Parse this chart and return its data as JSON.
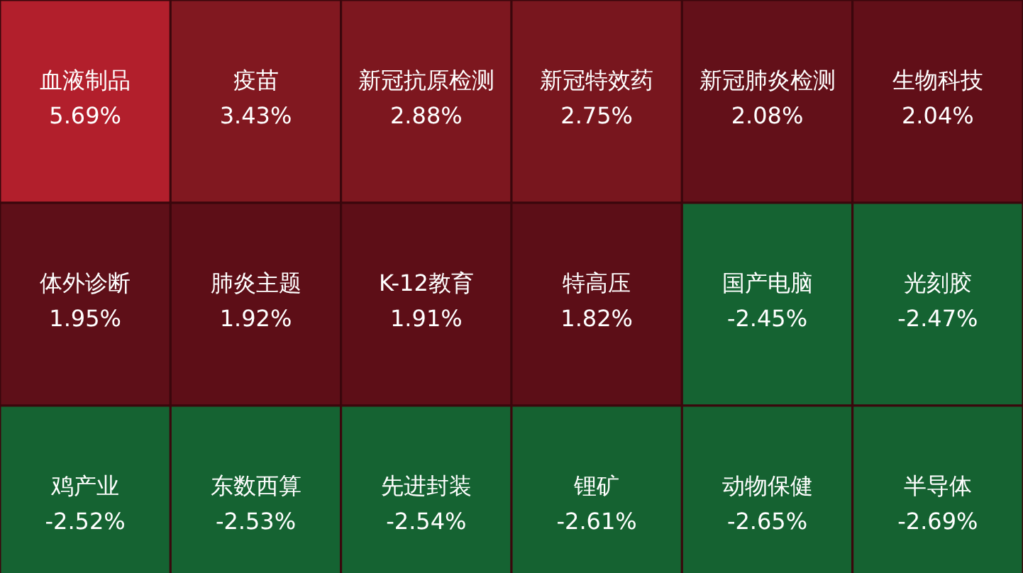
{
  "chart_data": {
    "type": "other",
    "categories": [
      "血液制品",
      "疫苗",
      "新冠抗原检测",
      "新冠特效药",
      "新冠肺炎检测",
      "生物科技",
      "体外诊断",
      "肺炎主题",
      "K-12教育",
      "特高压",
      "国产电脑",
      "光刻胶",
      "鸡产业",
      "东数西算",
      "先进封装",
      "锂矿",
      "动物保健",
      "半导体"
    ],
    "values": [
      5.69,
      3.43,
      2.88,
      2.75,
      2.08,
      2.04,
      1.95,
      1.92,
      1.91,
      1.82,
      -2.45,
      -2.47,
      -2.52,
      -2.53,
      -2.54,
      -2.61,
      -2.65,
      -2.69
    ],
    "value_labels": [
      "5.69%",
      "3.43%",
      "2.88%",
      "2.75%",
      "2.08%",
      "2.04%",
      "1.95%",
      "1.92%",
      "1.91%",
      "1.82%",
      "-2.45%",
      "-2.47%",
      "-2.52%",
      "-2.53%",
      "-2.54%",
      "-2.61%",
      "-2.65%",
      "-2.69%"
    ]
  }
}
